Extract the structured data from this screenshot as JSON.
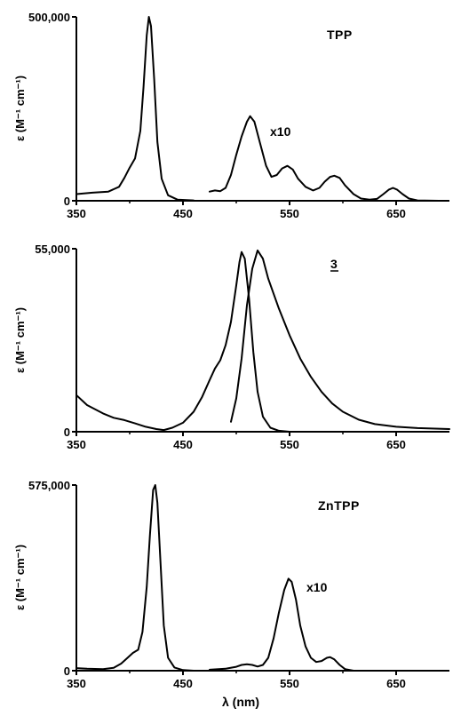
{
  "chart_data": [
    {
      "type": "line",
      "name_label": "TPP",
      "multiplier_label": "x10",
      "ylabel": "ε (M⁻¹ cm⁻¹)",
      "xlim": [
        350,
        700
      ],
      "ylim": [
        0,
        500000
      ],
      "yticks": [
        "0",
        "500,000"
      ],
      "xticks": [
        350,
        450,
        550,
        650
      ],
      "xtick_labels": [
        "350",
        "450",
        "550",
        "650"
      ],
      "series": [
        {
          "points": [
            [
              350,
              18000
            ],
            [
              365,
              22000
            ],
            [
              380,
              25000
            ],
            [
              390,
              38000
            ],
            [
              395,
              62000
            ],
            [
              400,
              90000
            ],
            [
              405,
              115000
            ],
            [
              410,
              190000
            ],
            [
              413,
              310000
            ],
            [
              416,
              450000
            ],
            [
              418,
              500000
            ],
            [
              420,
              475000
            ],
            [
              423,
              330000
            ],
            [
              426,
              160000
            ],
            [
              430,
              60000
            ],
            [
              436,
              15000
            ],
            [
              445,
              3000
            ],
            [
              460,
              1000
            ]
          ]
        },
        {
          "points": [
            [
              475,
              25000
            ],
            [
              480,
              28000
            ],
            [
              485,
              26000
            ],
            [
              490,
              35000
            ],
            [
              495,
              70000
            ],
            [
              500,
              125000
            ],
            [
              505,
              175000
            ],
            [
              510,
              215000
            ],
            [
              513,
              230000
            ],
            [
              517,
              215000
            ],
            [
              522,
              160000
            ],
            [
              528,
              95000
            ],
            [
              533,
              65000
            ],
            [
              538,
              70000
            ],
            [
              543,
              88000
            ],
            [
              548,
              95000
            ],
            [
              553,
              85000
            ],
            [
              558,
              60000
            ],
            [
              565,
              38000
            ],
            [
              572,
              28000
            ],
            [
              578,
              35000
            ],
            [
              583,
              52000
            ],
            [
              588,
              65000
            ],
            [
              592,
              68000
            ],
            [
              597,
              62000
            ],
            [
              602,
              42000
            ],
            [
              610,
              18000
            ],
            [
              617,
              6000
            ],
            [
              625,
              3000
            ],
            [
              632,
              5000
            ],
            [
              638,
              18000
            ],
            [
              643,
              30000
            ],
            [
              647,
              35000
            ],
            [
              651,
              30000
            ],
            [
              656,
              18000
            ],
            [
              662,
              6000
            ],
            [
              670,
              1000
            ],
            [
              690,
              0
            ]
          ]
        }
      ]
    },
    {
      "type": "line",
      "name_label": "3",
      "ylabel": "ε (M⁻¹ cm⁻¹)",
      "xlim": [
        350,
        700
      ],
      "ylim": [
        0,
        55000
      ],
      "yticks": [
        "0",
        "55,000"
      ],
      "xticks": [
        350,
        450,
        550,
        650
      ],
      "xtick_labels": [
        "350",
        "450",
        "550",
        "650"
      ],
      "series": [
        {
          "points": [
            [
              350,
              11000
            ],
            [
              360,
              8000
            ],
            [
              375,
              5500
            ],
            [
              385,
              4200
            ],
            [
              395,
              3500
            ],
            [
              405,
              2500
            ],
            [
              415,
              1500
            ],
            [
              425,
              800
            ],
            [
              432,
              500
            ],
            [
              440,
              1200
            ],
            [
              450,
              2700
            ],
            [
              460,
              6000
            ],
            [
              468,
              10500
            ],
            [
              475,
              15500
            ],
            [
              480,
              19000
            ],
            [
              485,
              21500
            ],
            [
              490,
              26000
            ],
            [
              495,
              33000
            ],
            [
              500,
              44000
            ],
            [
              503,
              51000
            ],
            [
              505,
              54000
            ],
            [
              508,
              52000
            ],
            [
              512,
              40000
            ],
            [
              516,
              24000
            ],
            [
              520,
              12000
            ],
            [
              525,
              4500
            ],
            [
              532,
              1200
            ],
            [
              540,
              300
            ],
            [
              550,
              0
            ]
          ]
        },
        {
          "points": [
            [
              495,
              3000
            ],
            [
              500,
              10000
            ],
            [
              505,
              22000
            ],
            [
              510,
              38000
            ],
            [
              515,
              49000
            ],
            [
              520,
              54500
            ],
            [
              525,
              52000
            ],
            [
              530,
              46000
            ],
            [
              540,
              37000
            ],
            [
              550,
              29000
            ],
            [
              560,
              22000
            ],
            [
              570,
              16500
            ],
            [
              580,
              12000
            ],
            [
              590,
              8500
            ],
            [
              600,
              6000
            ],
            [
              615,
              3600
            ],
            [
              630,
              2300
            ],
            [
              650,
              1500
            ],
            [
              670,
              1100
            ],
            [
              700,
              800
            ]
          ]
        }
      ]
    },
    {
      "type": "line",
      "name_label": "ZnTPP",
      "multiplier_label": "x10",
      "ylabel": "ε (M⁻¹ cm⁻¹)",
      "xlabel": "λ (nm)",
      "xlim": [
        350,
        700
      ],
      "ylim": [
        0,
        575000
      ],
      "yticks": [
        "0",
        "575,000"
      ],
      "xticks": [
        350,
        450,
        550,
        650
      ],
      "xtick_labels": [
        "350",
        "450",
        "550",
        "650"
      ],
      "series": [
        {
          "points": [
            [
              350,
              8000
            ],
            [
              360,
              6000
            ],
            [
              375,
              5000
            ],
            [
              385,
              9000
            ],
            [
              392,
              22000
            ],
            [
              398,
              40000
            ],
            [
              403,
              55000
            ],
            [
              408,
              65000
            ],
            [
              412,
              120000
            ],
            [
              416,
              260000
            ],
            [
              419,
              420000
            ],
            [
              422,
              560000
            ],
            [
              424,
              575000
            ],
            [
              426,
              520000
            ],
            [
              429,
              330000
            ],
            [
              432,
              140000
            ],
            [
              436,
              40000
            ],
            [
              442,
              10000
            ],
            [
              450,
              2000
            ],
            [
              460,
              0
            ]
          ]
        },
        {
          "points": [
            [
              475,
              3000
            ],
            [
              490,
              6000
            ],
            [
              500,
              12000
            ],
            [
              505,
              18000
            ],
            [
              510,
              20000
            ],
            [
              515,
              18000
            ],
            [
              520,
              13000
            ],
            [
              525,
              18000
            ],
            [
              530,
              40000
            ],
            [
              535,
              100000
            ],
            [
              540,
              180000
            ],
            [
              545,
              250000
            ],
            [
              549,
              285000
            ],
            [
              552,
              275000
            ],
            [
              556,
              220000
            ],
            [
              560,
              140000
            ],
            [
              565,
              75000
            ],
            [
              570,
              40000
            ],
            [
              575,
              27000
            ],
            [
              580,
              30000
            ],
            [
              585,
              40000
            ],
            [
              588,
              42000
            ],
            [
              592,
              35000
            ],
            [
              597,
              18000
            ],
            [
              602,
              5000
            ],
            [
              610,
              0
            ]
          ]
        }
      ]
    }
  ]
}
